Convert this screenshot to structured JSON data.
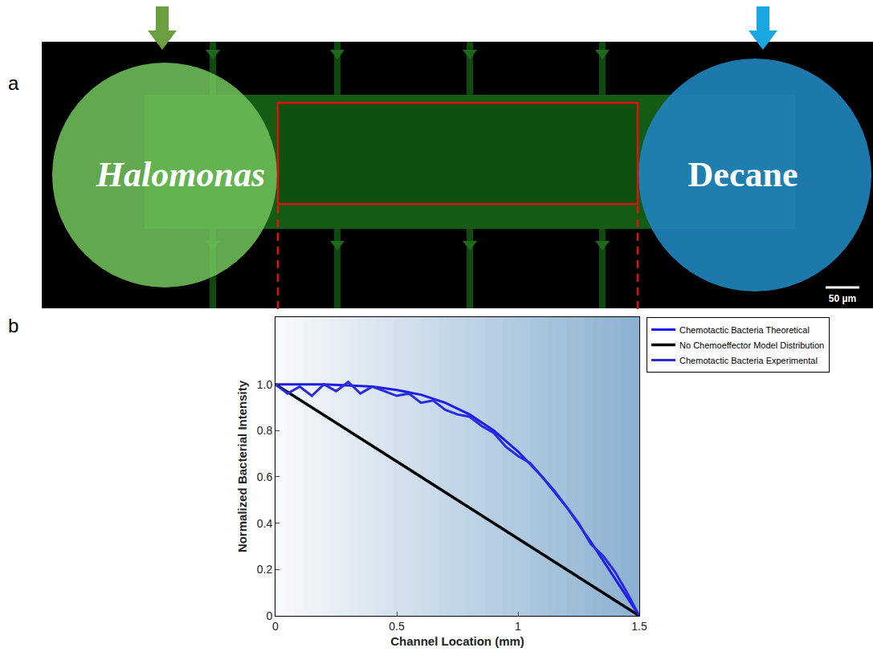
{
  "figure": {
    "panel_a": {
      "label": "a",
      "left_label": "Halomonas",
      "right_label": "Decane",
      "scale_bar": "50 µm"
    },
    "panel_b": {
      "label": "b"
    }
  },
  "chart_data": {
    "type": "line",
    "x_label": "Channel Location (mm)",
    "y_label": "Normalized Bacterial Intensity",
    "xlim": [
      0,
      1.5
    ],
    "xticks": [
      0,
      0.5,
      1,
      1.5
    ],
    "ylim": [
      0,
      1.29
    ],
    "yticks": [
      0,
      0.2,
      0.4,
      0.6,
      0.8,
      {
        "value": 1,
        "label": "1.0"
      }
    ],
    "grid": false,
    "legend": "right",
    "series": [
      {
        "name": "Chemotactic Bacteria Theoretical",
        "color": "#1c1cf0",
        "line_style": "solid",
        "x": [
          0,
          0.1,
          0.2,
          0.3,
          0.4,
          0.5,
          0.6,
          0.7,
          0.8,
          0.9,
          1.0,
          1.1,
          1.2,
          1.3,
          1.4,
          1.5
        ],
        "values": [
          1.0,
          1.0,
          1.0,
          0.995,
          0.99,
          0.975,
          0.955,
          0.92,
          0.87,
          0.8,
          0.71,
          0.6,
          0.47,
          0.32,
          0.16,
          0.0
        ]
      },
      {
        "name": "No Chemoeffector Model Distribution",
        "color": "#000000",
        "line_style": "solid",
        "x": [
          0,
          1.5
        ],
        "values": [
          1.0,
          0.0
        ]
      },
      {
        "name": "Chemotactic Bacteria Experimental",
        "color": "#2a2ae0",
        "line_style": "solid",
        "x": [
          0,
          0.05,
          0.1,
          0.15,
          0.2,
          0.25,
          0.3,
          0.35,
          0.4,
          0.45,
          0.5,
          0.55,
          0.6,
          0.65,
          0.7,
          0.75,
          0.8,
          0.85,
          0.9,
          0.95,
          1.0,
          1.05,
          1.1,
          1.15,
          1.2,
          1.25,
          1.3,
          1.35,
          1.4,
          1.45,
          1.5
        ],
        "values": [
          1.0,
          0.96,
          0.99,
          0.95,
          1.0,
          0.97,
          1.01,
          0.96,
          0.99,
          0.97,
          0.95,
          0.96,
          0.92,
          0.93,
          0.89,
          0.87,
          0.86,
          0.82,
          0.79,
          0.73,
          0.69,
          0.66,
          0.6,
          0.54,
          0.47,
          0.4,
          0.31,
          0.26,
          0.19,
          0.1,
          0.0
        ]
      }
    ]
  }
}
